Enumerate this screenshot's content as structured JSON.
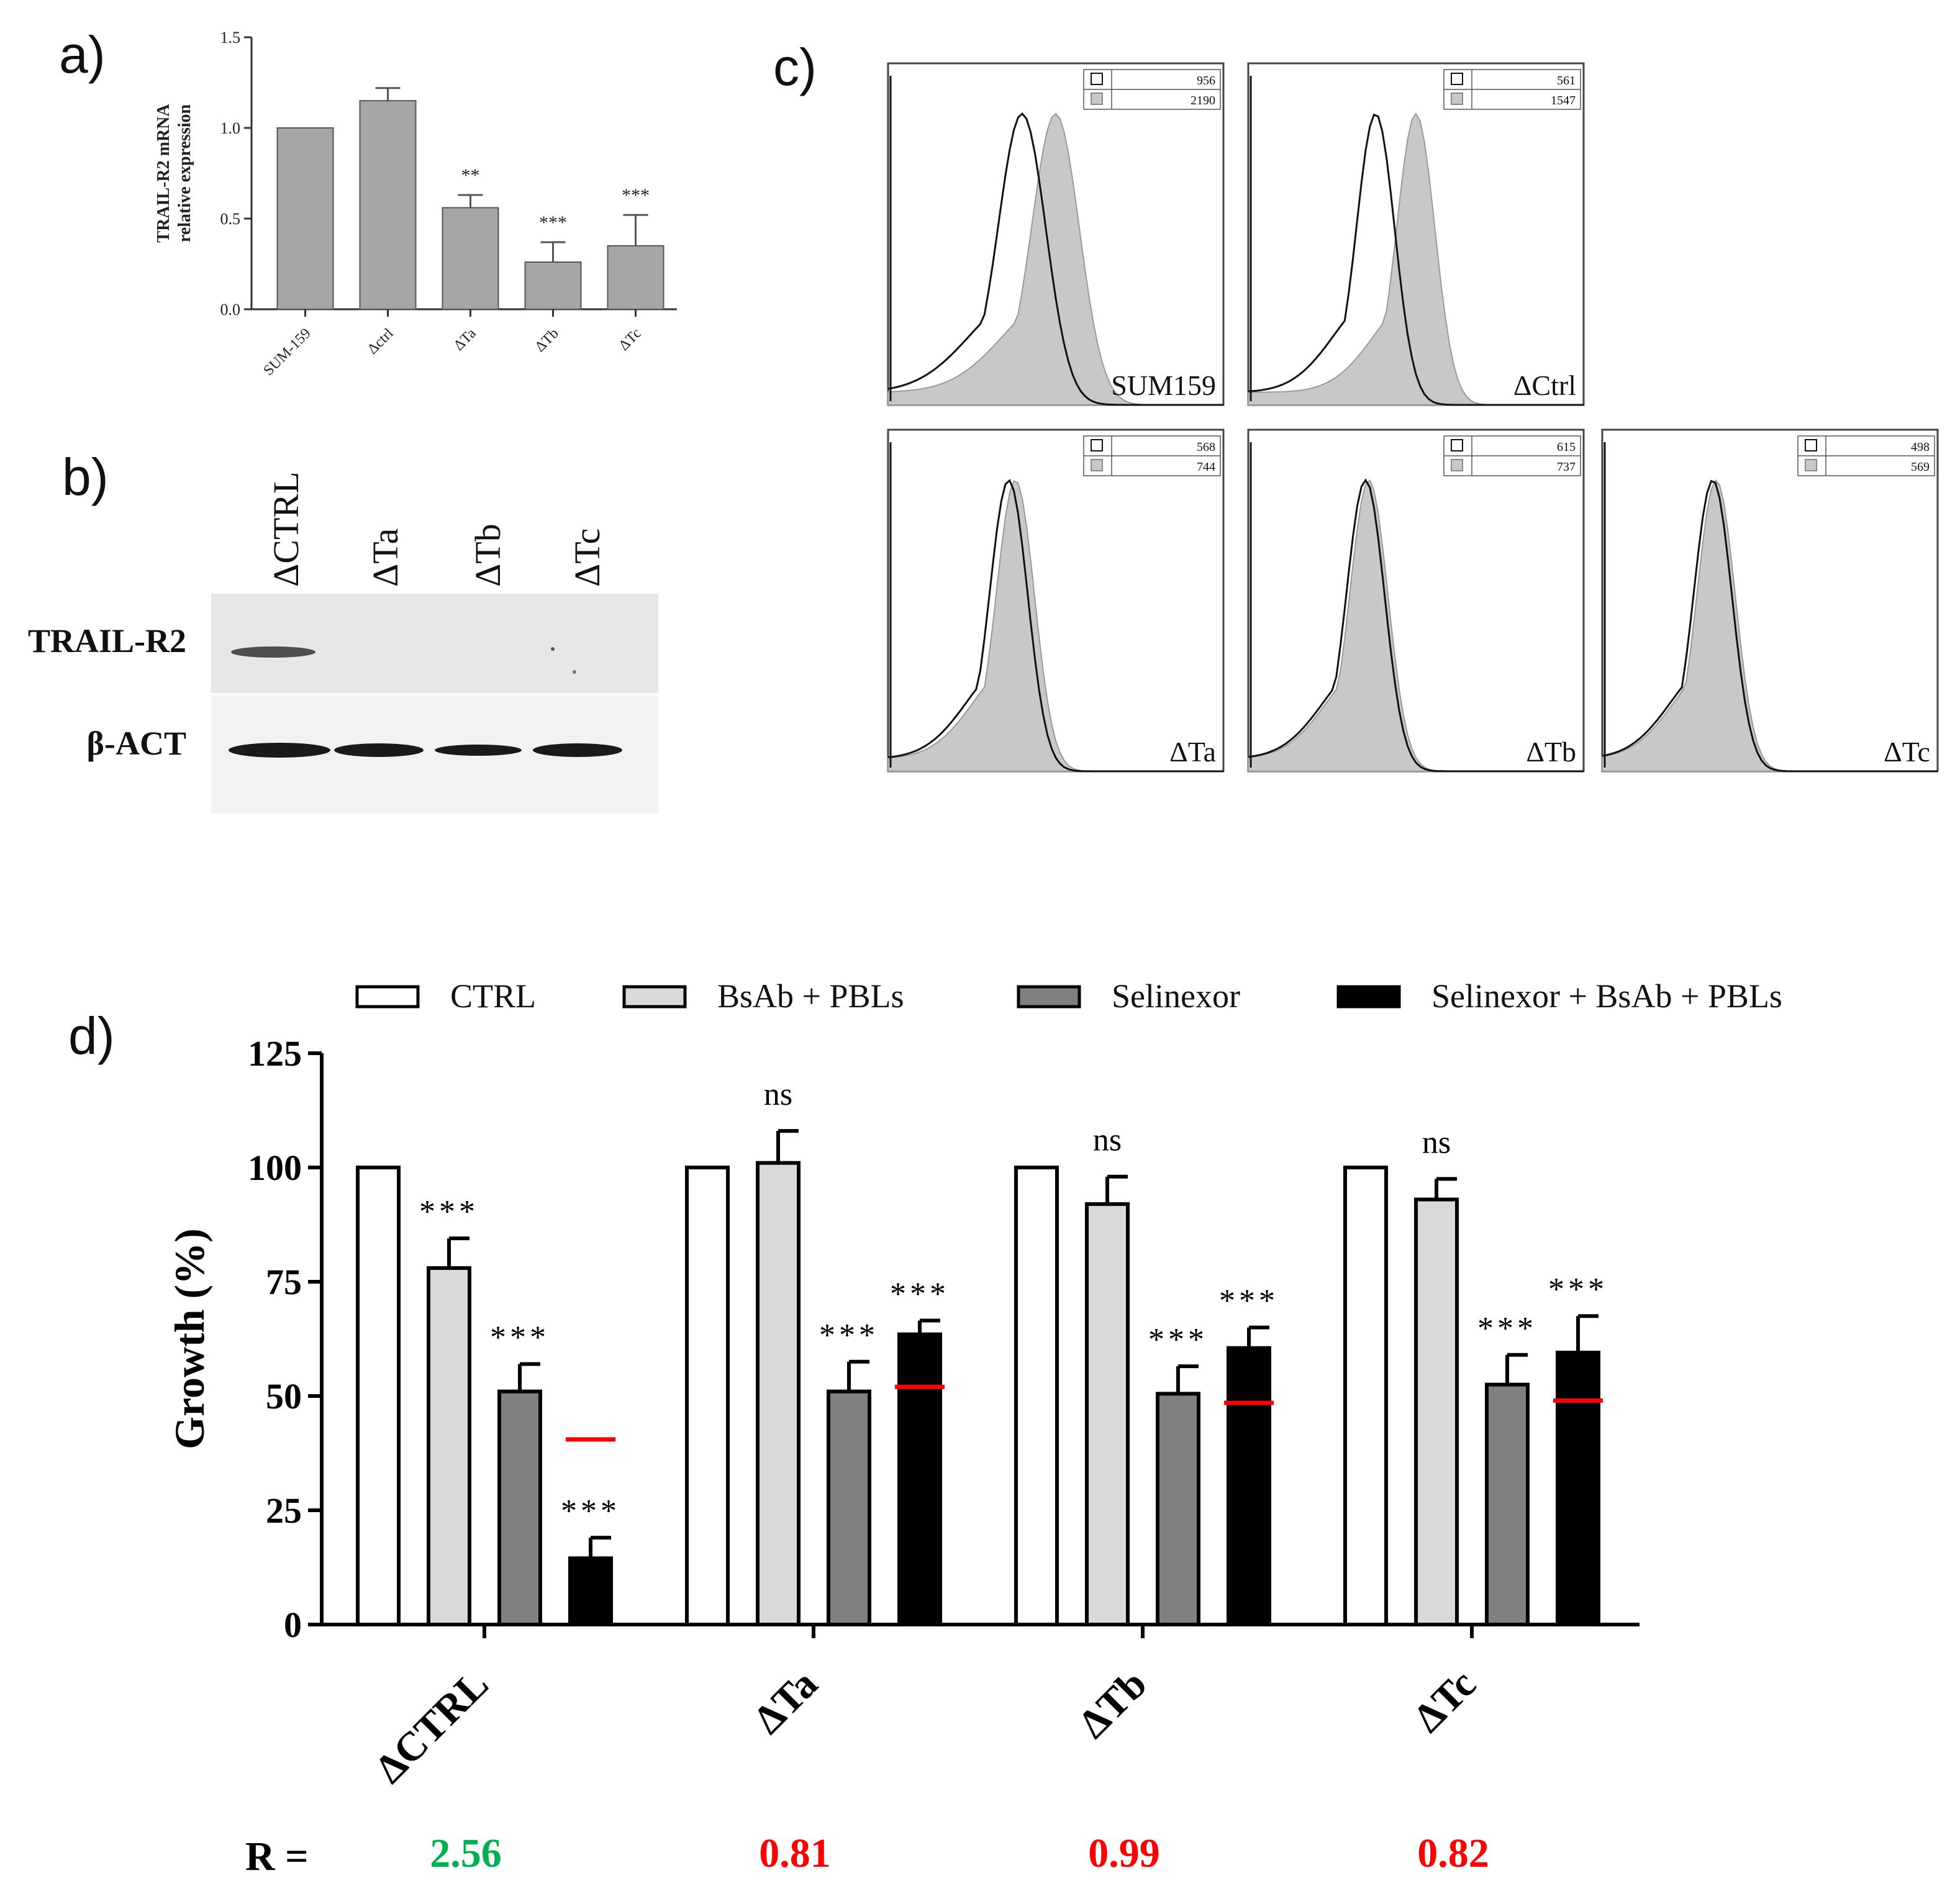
{
  "panels": {
    "a": {
      "letter": "a)"
    },
    "b": {
      "letter": "b)"
    },
    "c": {
      "letter": "c)"
    },
    "d": {
      "letter": "d)"
    }
  },
  "colors": {
    "bar_a": "#a6a6a6",
    "ctrl": "#ffffff",
    "bsab": "#d9d9d9",
    "selinexor": "#808080",
    "combo": "#000000",
    "expected": "#ff0000",
    "r_green": "#00b050",
    "r_red": "#ff0000",
    "histogram_fill": "#c8c8c8"
  },
  "chart_data": [
    {
      "id": "panel-a",
      "type": "bar",
      "ylabel": [
        "TRAIL-R2 mRNA",
        "relative expression"
      ],
      "ylim": [
        0,
        1.5
      ],
      "yticks": [
        "0.0",
        "0.5",
        "1.0",
        "1.5"
      ],
      "ytick_values": [
        0,
        0.5,
        1.0,
        1.5
      ],
      "categories": [
        "SUM-159",
        "Δctrl",
        "ΔTa",
        "ΔTb",
        "ΔTc"
      ],
      "values": [
        1.0,
        1.15,
        0.56,
        0.26,
        0.35
      ],
      "errors": [
        0,
        0.07,
        0.07,
        0.11,
        0.17
      ],
      "annotations": [
        "",
        "",
        "**",
        "***",
        "***"
      ]
    },
    {
      "id": "panel-c",
      "type": "histogram",
      "description": "Flow cytometry TRAIL-R2 histograms",
      "plots": [
        {
          "label": "SUM159",
          "legend": [
            "956",
            "2190"
          ],
          "outline_peak": 0.4,
          "filled_peak": 0.5,
          "outline_width": 0.1,
          "filled_width": 0.1
        },
        {
          "label": "ΔCtrl",
          "legend": [
            "561",
            "1547"
          ],
          "outline_peak": 0.38,
          "filled_peak": 0.5,
          "outline_width": 0.08,
          "filled_width": 0.08
        },
        {
          "label": "ΔTa",
          "legend": [
            "568",
            "744"
          ],
          "outline_peak": 0.36,
          "filled_peak": 0.38,
          "outline_width": 0.08,
          "filled_width": 0.08
        },
        {
          "label": "ΔTb",
          "legend": [
            "615",
            "737"
          ],
          "outline_peak": 0.35,
          "filled_peak": 0.36,
          "outline_width": 0.08,
          "filled_width": 0.08
        },
        {
          "label": "ΔTc",
          "legend": [
            "498",
            "569"
          ],
          "outline_peak": 0.33,
          "filled_peak": 0.34,
          "outline_width": 0.08,
          "filled_width": 0.08
        }
      ]
    },
    {
      "id": "panel-d",
      "type": "bar",
      "ylabel": "Growth (%)",
      "ylim": [
        0,
        125
      ],
      "yticks": [
        "0",
        "25",
        "50",
        "75",
        "100",
        "125"
      ],
      "ytick_values": [
        0,
        25,
        50,
        75,
        100,
        125
      ],
      "categories": [
        "ΔCTRL",
        "ΔTa",
        "ΔTb",
        "ΔTc"
      ],
      "series": [
        {
          "name": "CTRL",
          "values": [
            100,
            100,
            100,
            100
          ],
          "errors": [
            0,
            0,
            0,
            0
          ],
          "annotations": [
            "",
            "",
            "",
            ""
          ]
        },
        {
          "name": "BsAb + PBLs",
          "values": [
            78,
            101,
            92,
            93
          ],
          "errors": [
            6.5,
            7,
            6,
            4.5
          ],
          "annotations": [
            "***",
            "ns",
            "ns",
            "ns"
          ]
        },
        {
          "name": "Selinexor",
          "values": [
            51,
            51,
            50.5,
            52.5
          ],
          "errors": [
            6,
            6.5,
            6,
            6.5
          ],
          "annotations": [
            "***",
            "***",
            "***",
            "***"
          ]
        },
        {
          "name": "Selinexor + BsAb + PBLs",
          "values": [
            14.5,
            63.5,
            60.5,
            59.5
          ],
          "errors": [
            4.5,
            3,
            4.5,
            8
          ],
          "annotations": [
            "***",
            "***",
            "***",
            "***"
          ]
        }
      ],
      "expected_additive": [
        40.5,
        52,
        48.5,
        49
      ],
      "r_prefix": "R =",
      "r_values": [
        "2.56",
        "0.81",
        "0.99",
        "0.82"
      ]
    }
  ],
  "western_blot": {
    "lanes": [
      "ΔCTRL",
      "ΔTa",
      "ΔTb",
      "ΔTc"
    ],
    "rows": [
      "TRAIL-R2",
      "β-ACT"
    ]
  }
}
